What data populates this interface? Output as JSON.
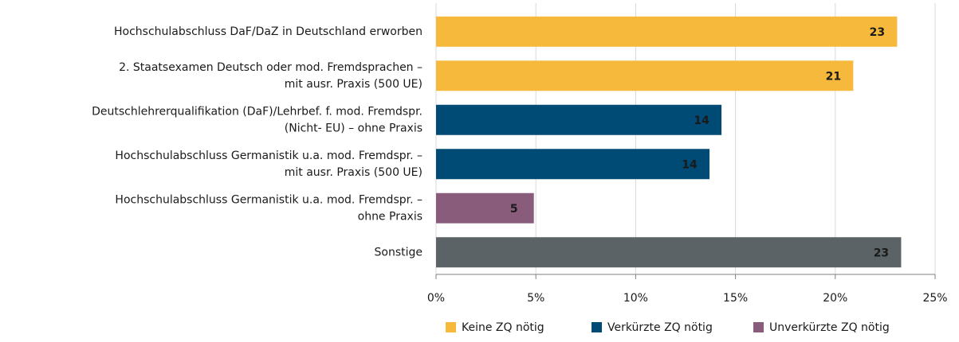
{
  "chart_data": {
    "type": "hbar",
    "categories": [
      [
        "Hochschulabschluss DaF/DaZ in Deutschland erworben"
      ],
      [
        "2. Staatsexamen Deutsch oder mod. Fremdsprachen –",
        "mit ausr. Praxis (500 UE)"
      ],
      [
        "Deutschlehrerqualifikation (DaF)/Lehrbef. f. mod. Fremdspr.",
        "(Nicht- EU) – ohne Praxis"
      ],
      [
        "Hochschulabschluss Germanistik u.a. mod. Fremdspr. –",
        "mit ausr. Praxis (500 UE)"
      ],
      [
        "Hochschulabschluss Germanistik u.a. mod. Fremdspr. –",
        "ohne Praxis"
      ],
      [
        "Sonstige"
      ]
    ],
    "values": [
      23.1,
      20.9,
      14.3,
      13.7,
      4.9,
      23.3
    ],
    "value_labels": [
      "23",
      "21",
      "14",
      "14",
      "5",
      "23"
    ],
    "colors": [
      "#f6b93b",
      "#f6b93b",
      "#004a76",
      "#004a76",
      "#8a5c7c",
      "#5b6366"
    ],
    "label_colors": [
      "#1a1a1a",
      "#1a1a1a",
      "#ffffff",
      "#ffffff",
      "#ffffff",
      "#ffffff"
    ],
    "xlim": [
      0,
      25
    ],
    "xticks": [
      {
        "value": 0,
        "label": "0%"
      },
      {
        "value": 5,
        "label": "5%"
      },
      {
        "value": 10,
        "label": "10%"
      },
      {
        "value": 15,
        "label": "15%"
      },
      {
        "value": 20,
        "label": "20%"
      },
      {
        "value": 25,
        "label": "25%"
      }
    ],
    "grid": true,
    "legend": [
      {
        "name": "Keine ZQ nötig",
        "color": "#f6b93b"
      },
      {
        "name": "Verkürzte ZQ nötig",
        "color": "#004a76"
      },
      {
        "name": "Unverkürzte ZQ nötig",
        "color": "#8a5c7c"
      }
    ]
  }
}
